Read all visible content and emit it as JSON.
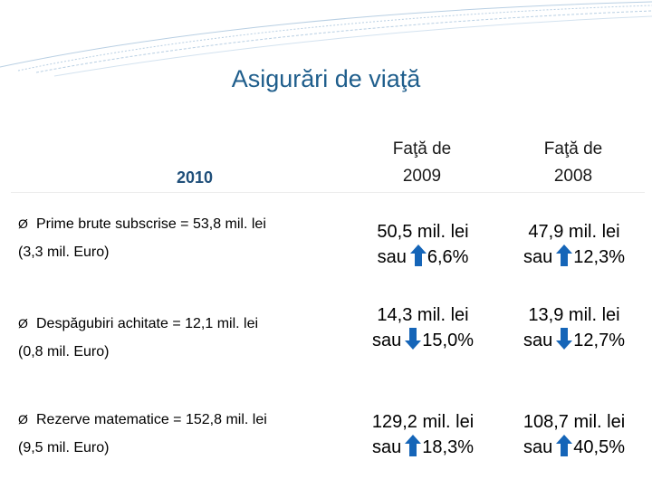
{
  "colors": {
    "title": "#1F5E8C",
    "arrow": "#1565B8"
  },
  "title": "Asigurări de viaţă",
  "year_label": "2010",
  "columns": [
    {
      "line1": "Faţă de",
      "line2": "2009"
    },
    {
      "line1": "Faţă de",
      "line2": "2008"
    }
  ],
  "rows": [
    {
      "bullet": "Ø",
      "label": "Prime brute subscrise = 53,8 mil. lei",
      "sub": "(3,3 mil. Euro)",
      "c1": {
        "value": "50,5 mil. lei",
        "sau": "sau",
        "direction": "up",
        "icon": "arrow-up-icon",
        "pct": "6,6%"
      },
      "c2": {
        "value": "47,9 mil. lei",
        "sau": "sau",
        "direction": "up",
        "icon": "arrow-up-icon",
        "pct": "12,3%"
      }
    },
    {
      "bullet": "Ø",
      "label": "Despăgubiri achitate = 12,1 mil. lei",
      "sub": "(0,8 mil. Euro)",
      "c1": {
        "value": "14,3 mil. lei",
        "sau": "sau",
        "direction": "down",
        "icon": "arrow-down-icon",
        "pct": "15,0%"
      },
      "c2": {
        "value": "13,9 mil. lei",
        "sau": "sau",
        "direction": "down",
        "icon": "arrow-down-icon",
        "pct": "12,7%"
      }
    },
    {
      "bullet": "Ø",
      "label": "Rezerve matematice = 152,8 mil. lei",
      "sub": "(9,5 mil. Euro)",
      "c1": {
        "value": "129,2 mil. lei",
        "sau": "sau",
        "direction": "up",
        "icon": "arrow-up-icon",
        "pct": "18,3%"
      },
      "c2": {
        "value": "108,7 mil. lei",
        "sau": "sau",
        "direction": "up",
        "icon": "arrow-up-icon",
        "pct": "40,5%"
      }
    }
  ]
}
